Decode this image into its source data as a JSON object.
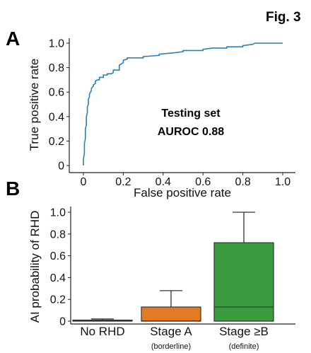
{
  "figure_label": "Fig. 3",
  "chart_data": [
    {
      "panel": "A",
      "type": "line",
      "title": "",
      "xlabel": "False positive rate",
      "ylabel": "True positive rate",
      "xlim": [
        0,
        1
      ],
      "ylim": [
        0,
        1
      ],
      "xticks": [
        "0",
        "0.2",
        "0.4",
        "0.6",
        "0.8",
        "1.0"
      ],
      "yticks": [
        "0",
        "0.2",
        "0.4",
        "0.6",
        "0.8",
        "1.0"
      ],
      "annotation": [
        "Testing set",
        "AUROC 0.88"
      ],
      "line_color": "#2f7fb0",
      "series": [
        {
          "x": [
            0,
            0,
            0.005,
            0.005,
            0.01,
            0.01,
            0.015,
            0.015,
            0.02,
            0.02,
            0.025,
            0.025,
            0.03,
            0.03,
            0.035,
            0.04,
            0.04,
            0.045,
            0.05,
            0.05,
            0.06,
            0.06,
            0.07,
            0.08,
            0.08,
            0.1,
            0.1,
            0.12,
            0.12,
            0.14,
            0.15,
            0.15,
            0.18,
            0.18,
            0.2,
            0.2,
            0.22,
            0.22,
            0.3,
            0.3,
            0.38,
            0.38,
            0.45,
            0.5,
            0.5,
            0.6,
            0.6,
            0.65,
            0.72,
            0.72,
            0.8,
            0.8,
            0.85,
            0.86,
            0.9,
            1.0
          ],
          "y": [
            0,
            0.05,
            0.1,
            0.18,
            0.22,
            0.3,
            0.33,
            0.4,
            0.43,
            0.48,
            0.5,
            0.54,
            0.56,
            0.58,
            0.6,
            0.61,
            0.63,
            0.64,
            0.65,
            0.66,
            0.67,
            0.69,
            0.7,
            0.7,
            0.72,
            0.72,
            0.74,
            0.74,
            0.75,
            0.75,
            0.76,
            0.78,
            0.78,
            0.82,
            0.84,
            0.86,
            0.87,
            0.88,
            0.88,
            0.89,
            0.9,
            0.91,
            0.92,
            0.93,
            0.94,
            0.94,
            0.95,
            0.96,
            0.96,
            0.97,
            0.97,
            0.98,
            0.99,
            1.0,
            1.0,
            1.0
          ]
        }
      ]
    },
    {
      "panel": "B",
      "type": "box",
      "title": "",
      "xlabel": "",
      "ylabel": "AI probability of RHD",
      "ylim": [
        0,
        1
      ],
      "yticks": [
        "0",
        "0.2",
        "0.4",
        "0.6",
        "0.8",
        "1.0"
      ],
      "categories": [
        "No RHD",
        "Stage A",
        "Stage ≥B"
      ],
      "sublabels": [
        "",
        "(borderline)",
        "(definite)"
      ],
      "boxes": [
        {
          "name": "No RHD",
          "color": "#1f77b4",
          "q1": 0.0,
          "median": 0.005,
          "q3": 0.01,
          "whisker_low": 0.0,
          "whisker_high": 0.02
        },
        {
          "name": "Stage A",
          "color": "#e07c22",
          "q1": 0.0,
          "median": 0.003,
          "q3": 0.13,
          "whisker_low": 0.0,
          "whisker_high": 0.28
        },
        {
          "name": "Stage ≥B",
          "color": "#3a9a3e",
          "q1": 0.0,
          "median": 0.13,
          "q3": 0.72,
          "whisker_low": 0.0,
          "whisker_high": 1.0
        }
      ]
    }
  ],
  "panel_letters": [
    "A",
    "B"
  ]
}
